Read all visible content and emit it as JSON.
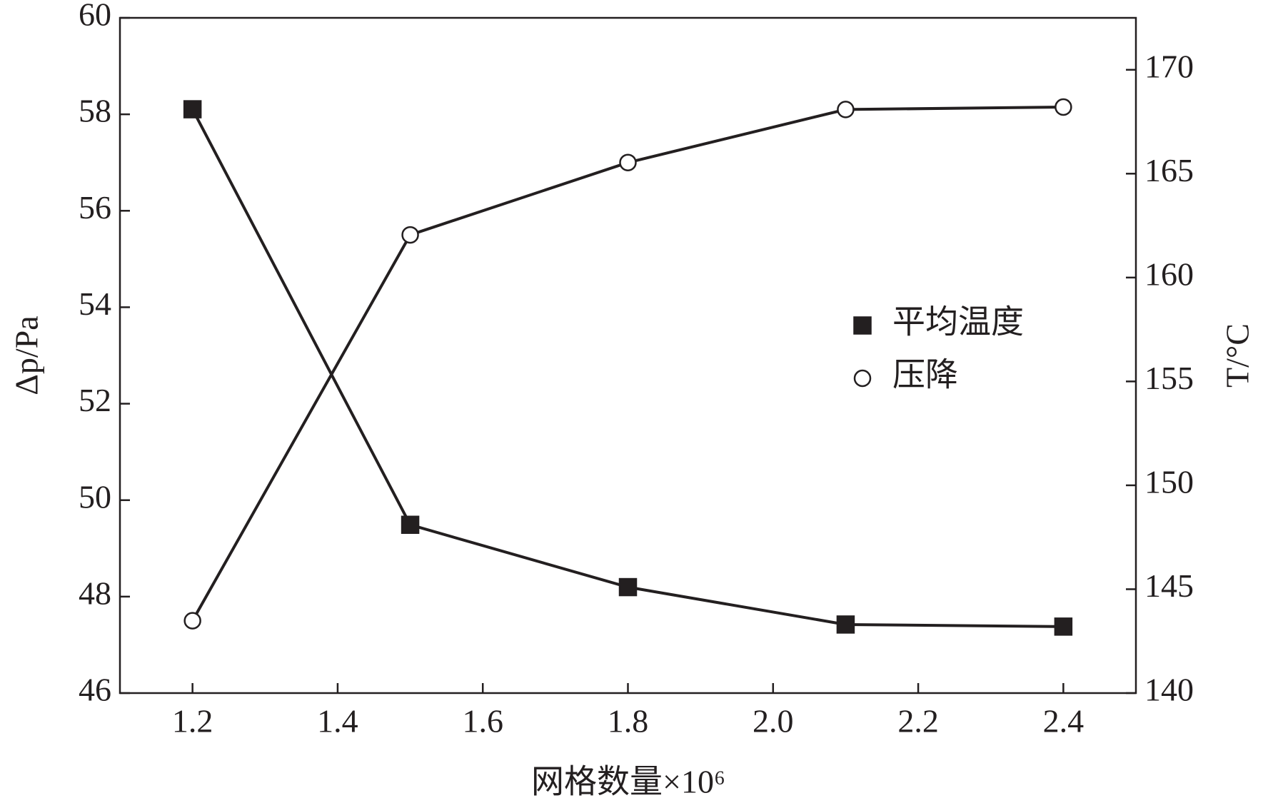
{
  "chart_data": {
    "type": "line",
    "x_label": "网格数量×10⁶",
    "y_label": "Δp/Pa",
    "y2_label": "T/°C",
    "x": [
      1.2,
      1.5,
      1.8,
      2.1,
      2.4
    ],
    "xlim": [
      1.1,
      2.5
    ],
    "xticks": [
      1.2,
      1.4,
      1.6,
      1.8,
      {
        "value": 2,
        "label": "2.0"
      },
      2.2,
      2.4
    ],
    "ylim": [
      46,
      60
    ],
    "yticks": [
      46,
      48,
      50,
      52,
      54,
      56,
      58,
      60
    ],
    "y2lim": [
      140,
      172.5
    ],
    "y2ticks": [
      140,
      145,
      150,
      155,
      160,
      165,
      170
    ],
    "series": [
      {
        "name": "平均温度",
        "color": "#231f20",
        "marker": "square",
        "axis": "y2",
        "values": [
          168.1,
          148.1,
          145.1,
          143.3,
          143.2
        ]
      },
      {
        "name": "压降",
        "color": "#231f20",
        "marker": "circle",
        "values": [
          47.5,
          55.5,
          57.0,
          58.1,
          58.15
        ]
      }
    ]
  }
}
